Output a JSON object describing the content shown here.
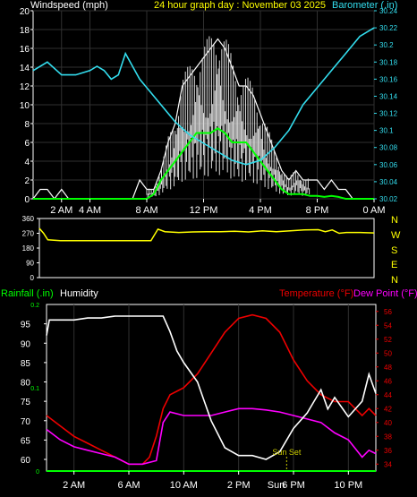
{
  "header": {
    "wind_title": "Windspeed (mph)",
    "graph_title": "24 hour graph day : November 03 2025",
    "baro_title": "Barometer (.in)"
  },
  "colors": {
    "background": "#000000",
    "axis": "#ffffff",
    "gust": "#ffffff",
    "avg_wind": "#00ff00",
    "barometer": "#33ddee",
    "direction": "#ffff00",
    "temperature": "#ee0000",
    "dew_point": "#ff00ff",
    "humidity": "#ffffff",
    "rainfall": "#00ff00",
    "sunset": "#cccc00",
    "temp_axis": "#ee0000",
    "grid": "#303030"
  },
  "chart_data": [
    {
      "id": "wind",
      "type": "line",
      "title": "24 hour graph day : November 03 2025",
      "xlabel": "",
      "ylabel": "Windspeed (mph)",
      "y2label": "Barometer (.in)",
      "x_tick_labels": [
        "2 AM",
        "4 AM",
        "8 AM",
        "12 PM",
        "4 PM",
        "8 PM",
        "0 AM"
      ],
      "x_tick_hours": [
        2,
        4,
        8,
        12,
        16,
        20,
        24
      ],
      "ylim": [
        0,
        20
      ],
      "y_ticks": [
        0,
        2,
        4,
        6,
        8,
        10,
        12,
        14,
        16,
        18,
        20
      ],
      "y2lim": [
        30.02,
        30.24
      ],
      "y2_ticks": [
        "30.02",
        "30.04",
        "30.06",
        "30.08",
        "30.1",
        "30.12",
        "30.14",
        "30.16",
        "30.18",
        "30.2",
        "30.22",
        "30.24"
      ],
      "grid": true,
      "series": [
        {
          "name": "Gust (mph)",
          "color_key": "gust",
          "x": [
            0,
            0.5,
            1,
            1.5,
            2,
            2.5,
            3,
            3.5,
            4,
            4.5,
            5,
            5.5,
            6,
            6.5,
            7,
            7.5,
            8,
            8.5,
            9,
            9.5,
            10,
            10.5,
            11,
            11.5,
            12,
            12.5,
            13,
            13.5,
            14,
            14.5,
            15,
            15.5,
            16,
            16.5,
            17,
            17.5,
            18,
            18.5,
            19,
            19.5,
            20,
            20.5,
            21,
            21.5,
            22,
            22.5,
            23,
            23.5,
            24
          ],
          "values": [
            0,
            1,
            1,
            0,
            1,
            0,
            0,
            0,
            0,
            0,
            0,
            0,
            0,
            0,
            0,
            2,
            1,
            1,
            3,
            6,
            8,
            12,
            13,
            14,
            15,
            16,
            17,
            16,
            14,
            12,
            12,
            11,
            9,
            7,
            5,
            3,
            2,
            3,
            2,
            2,
            2,
            1,
            2,
            1,
            1,
            0,
            0,
            0,
            0
          ]
        },
        {
          "name": "Wind speed (mph)",
          "color_key": "avg_wind",
          "x": [
            0,
            0.5,
            1,
            1.5,
            2,
            2.5,
            3,
            3.5,
            4,
            4.5,
            5,
            5.5,
            6,
            6.5,
            7,
            7.5,
            8,
            8.5,
            9,
            9.5,
            10,
            10.5,
            11,
            11.5,
            12,
            12.5,
            13,
            13.5,
            14,
            14.5,
            15,
            15.5,
            16,
            16.5,
            17,
            17.5,
            18,
            18.5,
            19,
            19.5,
            20,
            20.5,
            21,
            21.5,
            22,
            22.5,
            23,
            23.5,
            24
          ],
          "values": [
            0,
            0,
            0,
            0,
            0,
            0,
            0,
            0,
            0,
            0,
            0,
            0,
            0,
            0,
            0,
            0,
            0,
            0.5,
            2,
            3,
            4,
            5,
            6,
            7,
            7,
            7,
            7.5,
            7,
            6,
            6,
            6,
            5,
            4,
            3,
            2,
            1,
            0.5,
            0.5,
            0.5,
            0.3,
            0.3,
            0.2,
            0.3,
            0.2,
            0,
            0,
            0,
            0,
            0
          ]
        },
        {
          "name": "Barometer (.in)",
          "color_key": "barometer",
          "axis": "y2",
          "x": [
            0,
            1,
            2,
            3,
            4,
            4.5,
            5,
            5.5,
            6,
            6.5,
            7,
            7.5,
            8,
            9,
            10,
            11,
            12,
            13,
            14,
            15,
            16,
            17,
            18,
            19,
            20,
            21,
            22,
            23,
            24
          ],
          "values": [
            30.17,
            30.18,
            30.165,
            30.165,
            30.17,
            30.175,
            30.17,
            30.16,
            30.165,
            30.19,
            30.175,
            30.16,
            30.15,
            30.13,
            30.11,
            30.095,
            30.085,
            30.075,
            30.065,
            30.06,
            30.065,
            30.08,
            30.1,
            30.13,
            30.15,
            30.17,
            30.19,
            30.21,
            30.22
          ]
        }
      ]
    },
    {
      "id": "direction",
      "type": "line",
      "title": "",
      "ylim": [
        0,
        360
      ],
      "y_ticks": [
        0,
        90,
        180,
        270,
        360
      ],
      "y_tick_labels": [
        "0",
        "90",
        "180",
        "270",
        "360"
      ],
      "compass_labels": [
        "N",
        "W",
        "S",
        "E",
        "N"
      ],
      "series": [
        {
          "name": "Wind direction",
          "color_key": "direction",
          "x": [
            0,
            0.3,
            0.6,
            1.5,
            2.5,
            4,
            6,
            7,
            8,
            8.5,
            9,
            10,
            11,
            12,
            13,
            14,
            15,
            16,
            17,
            18,
            19,
            20,
            20.5,
            21,
            21.5,
            22,
            23,
            24
          ],
          "values": [
            300,
            270,
            230,
            225,
            225,
            225,
            225,
            225,
            225,
            295,
            280,
            275,
            278,
            280,
            280,
            282,
            278,
            285,
            280,
            285,
            290,
            292,
            280,
            290,
            270,
            275,
            275,
            272
          ]
        }
      ]
    },
    {
      "id": "temp",
      "type": "line",
      "title": "",
      "x_tick_labels": [
        "2 AM",
        "6 AM",
        "10 AM",
        "2 PM",
        "6 PM",
        "10 PM"
      ],
      "x_tick_hours": [
        2,
        6,
        10,
        14,
        18,
        22
      ],
      "left_labels": {
        "rainfall": "Rainfall (.in)",
        "humidity": "Humidity"
      },
      "right_labels": {
        "temperature": "Temperature (°F)",
        "dew_point": "Dew Point (°F)"
      },
      "humidity_ylim": [
        57,
        100
      ],
      "humidity_ticks": [
        60,
        65,
        70,
        75,
        80,
        85,
        90,
        95
      ],
      "rain_ylim": [
        0,
        0.2
      ],
      "rain_ticks": [
        "0",
        "0.1",
        "0.2"
      ],
      "temp_ylim": [
        33,
        57
      ],
      "temp_ticks": [
        34,
        36,
        38,
        40,
        42,
        44,
        46,
        48,
        50,
        52,
        54,
        56
      ],
      "sunset_label": "Sun Set",
      "sunset_hour": 17.5,
      "overlap_tick_label": "Sun",
      "series": [
        {
          "name": "Temperature",
          "color_key": "temperature",
          "x": [
            0,
            1,
            2,
            3,
            4,
            5,
            6,
            7,
            7.5,
            8,
            8.5,
            9,
            9.5,
            10,
            11,
            12,
            13,
            14,
            15,
            16,
            17,
            18,
            19,
            20,
            21,
            22,
            23,
            23.5,
            24
          ],
          "values": [
            41,
            39.5,
            38,
            37,
            36,
            35,
            34,
            34,
            35,
            38,
            42,
            44,
            44.5,
            45,
            47,
            50,
            53,
            55,
            55.5,
            55,
            53,
            49,
            46,
            44,
            43,
            43,
            41,
            42,
            41
          ]
        },
        {
          "name": "Dew Point",
          "color_key": "dew_point",
          "x": [
            0,
            1,
            2,
            3,
            4,
            5,
            6,
            7,
            8,
            8.5,
            9,
            10,
            11,
            12,
            13,
            14,
            15,
            16,
            17,
            18,
            19,
            20,
            21,
            22,
            23,
            23.5,
            24
          ],
          "values": [
            39,
            37.5,
            36.5,
            36,
            35.5,
            35,
            34,
            34,
            34.5,
            40,
            41.5,
            41,
            41,
            41,
            41.5,
            42,
            42,
            41.8,
            41.5,
            41,
            40.5,
            40,
            38.5,
            37.5,
            35,
            36,
            35.5
          ]
        },
        {
          "name": "Humidity",
          "color_key": "humidity",
          "x": [
            0,
            0.2,
            1,
            2,
            3,
            4,
            5,
            6,
            7,
            8,
            8.5,
            9,
            9.5,
            10,
            11,
            11.5,
            12,
            13,
            14,
            15,
            16,
            17,
            18,
            19,
            19.5,
            20,
            20.5,
            21,
            22,
            23,
            23.5,
            24
          ],
          "values": [
            92,
            96,
            96,
            96,
            96.5,
            96.5,
            97,
            97,
            97,
            97,
            97,
            93,
            88,
            85,
            80,
            75,
            70,
            63,
            61,
            61,
            60,
            62,
            68,
            72,
            75,
            78,
            73,
            76,
            71,
            75,
            82,
            77
          ]
        },
        {
          "name": "Rainfall",
          "color_key": "rainfall",
          "x": [
            0,
            24
          ],
          "values": [
            0,
            0
          ]
        }
      ]
    }
  ]
}
